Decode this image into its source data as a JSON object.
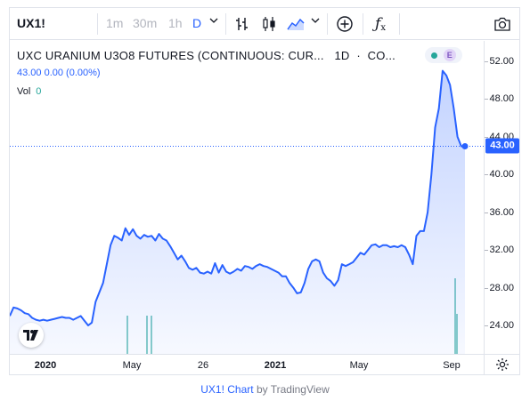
{
  "toolbar": {
    "symbol": "UX1!",
    "intervals": [
      "1m",
      "30m",
      "1h",
      "D"
    ],
    "active_interval": "D"
  },
  "legend": {
    "title": "UXC URANIUM U3O8 FUTURES (CONTINUOUS: CUR...",
    "interval": "1D",
    "exchange": "CO...",
    "values": "43.00 0.00 (0.00%)",
    "vol_label": "Vol",
    "vol_value": "0",
    "badge_letter": "E"
  },
  "price_axis": {
    "ticks": [
      "52.00",
      "48.00",
      "44.00",
      "40.00",
      "36.00",
      "32.00",
      "28.00",
      "24.00"
    ],
    "current_price": "43.00"
  },
  "time_axis": {
    "ticks": [
      {
        "label": "2020",
        "bold": true
      },
      {
        "label": "May",
        "bold": false
      },
      {
        "label": "26",
        "bold": false
      },
      {
        "label": "2021",
        "bold": true
      },
      {
        "label": "May",
        "bold": false
      },
      {
        "label": "Sep",
        "bold": false
      }
    ]
  },
  "footer": {
    "link_text": "UX1! Chart",
    "by_text": "by TradingView"
  },
  "colors": {
    "line": "#2962ff",
    "area": "#2962ff",
    "volume": "#26a69a",
    "accent": "#2962ff"
  },
  "chart_data": {
    "type": "area",
    "ylim": [
      22,
      54
    ],
    "y_ticks": [
      24,
      28,
      32,
      36,
      40,
      44,
      48,
      52
    ],
    "x_ticks": [
      "2020",
      "May",
      "26",
      "2021",
      "May",
      "Sep"
    ],
    "series": [
      {
        "values": [
          25.0,
          25.9,
          25.8,
          25.6,
          25.3,
          25.2,
          24.8,
          24.6,
          24.5,
          24.6,
          24.5,
          24.6,
          24.7,
          24.8,
          24.9,
          24.8,
          24.8,
          24.6,
          24.8,
          25.0,
          24.5,
          24.0,
          24.3,
          26.5,
          27.5,
          28.5,
          30.5,
          32.5,
          33.5,
          33.3,
          33.0,
          34.3,
          33.6,
          34.2,
          33.5,
          33.2,
          33.6,
          33.4,
          33.5,
          33.0,
          33.7,
          33.2,
          33.0,
          32.4,
          31.7,
          31.0,
          31.4,
          30.8,
          30.1,
          29.9,
          30.1,
          29.6,
          29.5,
          29.7,
          29.5,
          30.6,
          29.6,
          30.4,
          29.7,
          29.5,
          29.7,
          30.0,
          29.8,
          30.3,
          30.2,
          30.0,
          30.3,
          30.5,
          30.3,
          30.2,
          30.0,
          29.8,
          29.6,
          29.2,
          29.2,
          28.5,
          28.0,
          27.4,
          27.5,
          28.5,
          30.0,
          30.8,
          31.0,
          30.8,
          29.6,
          29.0,
          28.7,
          28.2,
          28.8,
          30.5,
          30.3,
          30.5,
          30.7,
          31.2,
          31.7,
          31.5,
          32.0,
          32.5,
          32.6,
          32.3,
          32.5,
          32.5,
          32.3,
          32.4,
          32.3,
          32.5,
          32.3,
          31.5,
          30.5,
          33.5,
          34.0,
          34.0,
          36.0,
          40.0,
          45.0,
          47.0,
          51.0,
          50.5,
          49.5,
          47.0,
          44.0,
          43.0,
          43.0
        ]
      }
    ]
  }
}
